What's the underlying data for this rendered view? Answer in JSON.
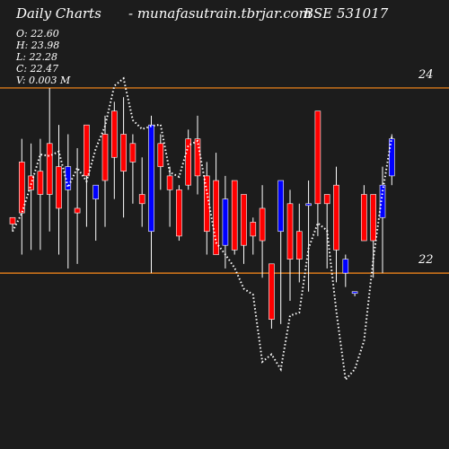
{
  "header": {
    "left": "Daily Charts",
    "middle": "- munafasutrain.tbrjar.com",
    "right": "BSE 531017"
  },
  "ohlc": {
    "open": "O: 22.60",
    "high": "H: 23.98",
    "low": "L: 22.28",
    "close": "C: 22.47",
    "volume": "V: 0.003 M"
  },
  "colors": {
    "background": "#1c1c1c",
    "up": "#0000ff",
    "down": "#ff0000",
    "wick": "#ffffff",
    "level_line": "#ff8c1a",
    "ma_line": "#ffffff"
  },
  "chart_data": {
    "type": "candlestick",
    "ylim": [
      20.1,
      24.95
    ],
    "levels": [
      {
        "value": 24,
        "label": "24"
      },
      {
        "value": 22,
        "label": "22"
      }
    ],
    "candles": [
      {
        "o": 22.6,
        "h": 22.6,
        "l": 22.45,
        "c": 22.53
      },
      {
        "o": 23.2,
        "h": 23.45,
        "l": 22.2,
        "c": 22.65
      },
      {
        "o": 23.05,
        "h": 23.4,
        "l": 22.25,
        "c": 22.9
      },
      {
        "o": 23.1,
        "h": 23.45,
        "l": 22.25,
        "c": 22.85
      },
      {
        "o": 23.4,
        "h": 24.0,
        "l": 22.45,
        "c": 22.85
      },
      {
        "o": 23.15,
        "h": 23.6,
        "l": 22.2,
        "c": 22.7
      },
      {
        "o": 22.9,
        "h": 23.5,
        "l": 22.05,
        "c": 23.15
      },
      {
        "o": 22.7,
        "h": 23.35,
        "l": 22.1,
        "c": 22.65
      },
      {
        "o": 23.6,
        "h": 23.6,
        "l": 22.5,
        "c": 23.05
      },
      {
        "o": 22.8,
        "h": 22.95,
        "l": 22.35,
        "c": 22.95
      },
      {
        "o": 23.5,
        "h": 23.7,
        "l": 22.5,
        "c": 23.0
      },
      {
        "o": 23.75,
        "h": 23.85,
        "l": 22.8,
        "c": 23.25
      },
      {
        "o": 23.5,
        "h": 23.9,
        "l": 22.6,
        "c": 23.1
      },
      {
        "o": 23.4,
        "h": 23.5,
        "l": 22.75,
        "c": 23.2
      },
      {
        "o": 22.85,
        "h": 23.25,
        "l": 22.5,
        "c": 22.75
      },
      {
        "o": 22.45,
        "h": 23.7,
        "l": 22.0,
        "c": 23.6
      },
      {
        "o": 23.4,
        "h": 23.5,
        "l": 22.9,
        "c": 23.15
      },
      {
        "o": 23.05,
        "h": 23.15,
        "l": 22.5,
        "c": 22.9
      },
      {
        "o": 22.9,
        "h": 22.95,
        "l": 22.35,
        "c": 22.4
      },
      {
        "o": 23.45,
        "h": 23.55,
        "l": 22.9,
        "c": 22.95
      },
      {
        "o": 23.45,
        "h": 23.7,
        "l": 22.85,
        "c": 23.05
      },
      {
        "o": 23.05,
        "h": 23.2,
        "l": 22.2,
        "c": 22.45
      },
      {
        "o": 23.0,
        "h": 23.3,
        "l": 22.2,
        "c": 22.2
      },
      {
        "o": 22.3,
        "h": 23.05,
        "l": 22.05,
        "c": 22.8
      },
      {
        "o": 23.0,
        "h": 23.0,
        "l": 22.2,
        "c": 22.25
      },
      {
        "o": 22.85,
        "h": 22.85,
        "l": 22.1,
        "c": 22.3
      },
      {
        "o": 22.55,
        "h": 22.6,
        "l": 22.2,
        "c": 22.4
      },
      {
        "o": 22.7,
        "h": 22.95,
        "l": 21.95,
        "c": 22.35
      },
      {
        "o": 22.1,
        "h": 22.1,
        "l": 21.4,
        "c": 21.5
      },
      {
        "o": 22.45,
        "h": 23.0,
        "l": 21.45,
        "c": 23.0
      },
      {
        "o": 22.75,
        "h": 22.9,
        "l": 21.7,
        "c": 22.15
      },
      {
        "o": 22.45,
        "h": 22.75,
        "l": 21.9,
        "c": 22.15
      },
      {
        "o": 22.75,
        "h": 23.0,
        "l": 21.8,
        "c": 22.75
      },
      {
        "o": 23.75,
        "h": 23.75,
        "l": 22.4,
        "c": 22.75
      },
      {
        "o": 22.85,
        "h": 22.85,
        "l": 22.05,
        "c": 22.75
      },
      {
        "o": 22.95,
        "h": 23.15,
        "l": 21.9,
        "c": 22.25
      },
      {
        "o": 22.0,
        "h": 22.2,
        "l": 21.85,
        "c": 22.15
      },
      {
        "o": 21.8,
        "h": 21.8,
        "l": 21.75,
        "c": 21.8
      },
      {
        "o": 22.85,
        "h": 22.95,
        "l": 22.35,
        "c": 22.35
      },
      {
        "o": 22.85,
        "h": 22.85,
        "l": 21.95,
        "c": 22.35
      },
      {
        "o": 22.6,
        "h": 23.15,
        "l": 22.0,
        "c": 22.95
      },
      {
        "o": 23.05,
        "h": 23.5,
        "l": 22.95,
        "c": 23.45
      }
    ]
  }
}
